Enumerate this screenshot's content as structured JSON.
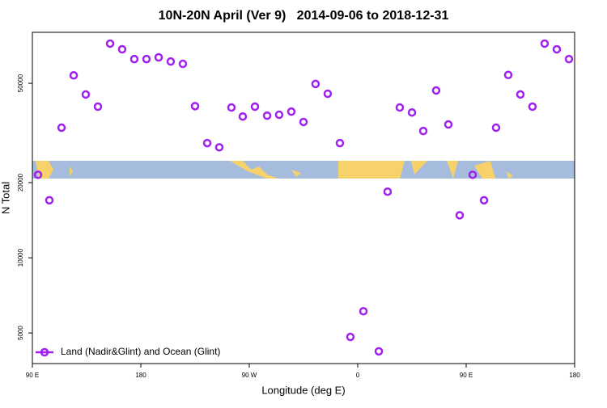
{
  "chart_data": {
    "type": "scatter",
    "title": "10N-20N April (Ver 9)   2014-09-06 to 2018-12-31",
    "x_label": "Longitude (deg E)",
    "y_label": "N Total",
    "xlim": [
      90,
      540
    ],
    "xticks": [
      {
        "value": 90,
        "label": "90 E"
      },
      {
        "value": 180,
        "label": "180"
      },
      {
        "value": 270,
        "label": "90 W"
      },
      {
        "value": 360,
        "label": "0"
      },
      {
        "value": 450,
        "label": "90 E"
      },
      {
        "value": 540,
        "label": "180"
      }
    ],
    "ylim": [
      3770,
      80000
    ],
    "ylog": true,
    "yticks": [
      5000,
      10000,
      20000,
      50000
    ],
    "legend": "bottom-left",
    "series": [
      {
        "name": "Land (Nadir&Glint) and Ocean (Glint)",
        "color": "#a020f0",
        "x": [
          94.7,
          104.1,
          114.2,
          124.3,
          134.3,
          144.4,
          154.5,
          164.5,
          174.6,
          184.7,
          194.8,
          204.8,
          214.9,
          225.0,
          235.1,
          245.1,
          255.2,
          264.6,
          274.7,
          284.8,
          294.8,
          304.9,
          315.0,
          325.0,
          335.1,
          345.2,
          353.9,
          364.7,
          377.5,
          384.8,
          394.9,
          405.0,
          414.4,
          425.1,
          435.2,
          444.6,
          455.4,
          464.8,
          474.8,
          484.9,
          495.0,
          505.0,
          515.1,
          525.2,
          535.3
        ],
        "values": [
          21500,
          17000,
          33200,
          53800,
          45100,
          40300,
          72100,
          68400,
          62500,
          62500,
          63500,
          61100,
          59800,
          40500,
          28800,
          27700,
          40000,
          36800,
          40300,
          37100,
          37400,
          38500,
          35000,
          49700,
          45400,
          28800,
          4820,
          6110,
          4220,
          18400,
          40000,
          38200,
          32200,
          46800,
          34200,
          14800,
          21500,
          17000,
          33200,
          54000,
          45100,
          40300,
          72100,
          68400,
          62500
        ]
      }
    ]
  }
}
